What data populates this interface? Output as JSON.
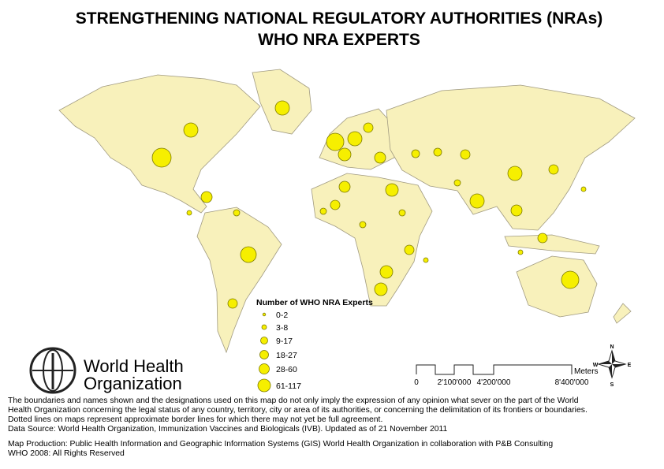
{
  "header": {
    "title_lines": [
      "STRENGTHENING NATIONAL REGULATORY AUTHORITIES (NRAs)",
      "WHO NRA EXPERTS"
    ]
  },
  "legend": {
    "title": "Number of WHO NRA Experts",
    "items": [
      "0-2",
      "3-8",
      "9-17",
      "18-27",
      "28-60",
      "61-117"
    ]
  },
  "logo": {
    "lines": [
      "World Health",
      "Organization"
    ]
  },
  "scale": {
    "labels": [
      "0",
      "2'100'000",
      "4'200'000",
      "8'400'000"
    ],
    "unit": "Meters"
  },
  "compass": {
    "n": "N",
    "s": "S",
    "e": "E",
    "w": "W"
  },
  "disclaimer": {
    "lines": [
      "The boundaries and names shown and the designations used on this map do not only imply the expression of any opinion what sever on the part of the World",
      "Health Organization concerning the legal status of any country, territory, city or area of its authorities, or concerning the delimitation of its frontiers or boundaries.",
      "Dotted lines on maps represent approximate border lines for which there may not yet be full agreement.",
      "Data Source: World Health Organization, Immunization Vaccines and Biologicals (IVB). Updated as of 21 November 2011",
      "Map Production: Public Health Information and Geographic Information Systems (GIS) World Health Organization in collaboration with P&B Consulting",
      "WHO 2008: All Rights Reserved"
    ]
  }
}
